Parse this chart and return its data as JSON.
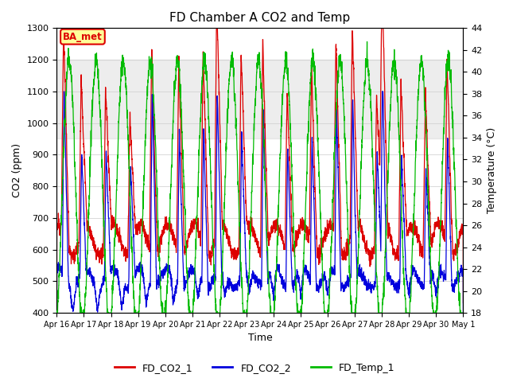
{
  "title": "FD Chamber A CO2 and Temp",
  "xlabel": "Time",
  "ylabel_left": "CO2 (ppm)",
  "ylabel_right": "Temperature (°C)",
  "ylim_left": [
    400,
    1300
  ],
  "ylim_right": [
    18,
    44
  ],
  "yticks_left": [
    400,
    500,
    600,
    700,
    800,
    900,
    1000,
    1100,
    1200,
    1300
  ],
  "yticks_right": [
    18,
    20,
    22,
    24,
    26,
    28,
    30,
    32,
    34,
    36,
    38,
    40,
    42,
    44
  ],
  "xtick_labels": [
    "Apr 16",
    "Apr 17",
    "Apr 18",
    "Apr 19",
    "Apr 20",
    "Apr 21",
    "Apr 22",
    "Apr 23",
    "Apr 24",
    "Apr 25",
    "Apr 26",
    "Apr 27",
    "Apr 28",
    "Apr 29",
    "Apr 30",
    "May 1"
  ],
  "annotation_text": "BA_met",
  "annotation_color": "#dd0000",
  "annotation_bg": "#ffff99",
  "color_co2_1": "#dd0000",
  "color_co2_2": "#0000dd",
  "color_temp": "#00bb00",
  "legend_labels": [
    "FD_CO2_1",
    "FD_CO2_2",
    "FD_Temp_1"
  ],
  "grid_color": "#cccccc",
  "bg_color": "#e8e8e8",
  "shaded_band_low": 950,
  "shaded_band_high": 1200,
  "n_days": 15
}
